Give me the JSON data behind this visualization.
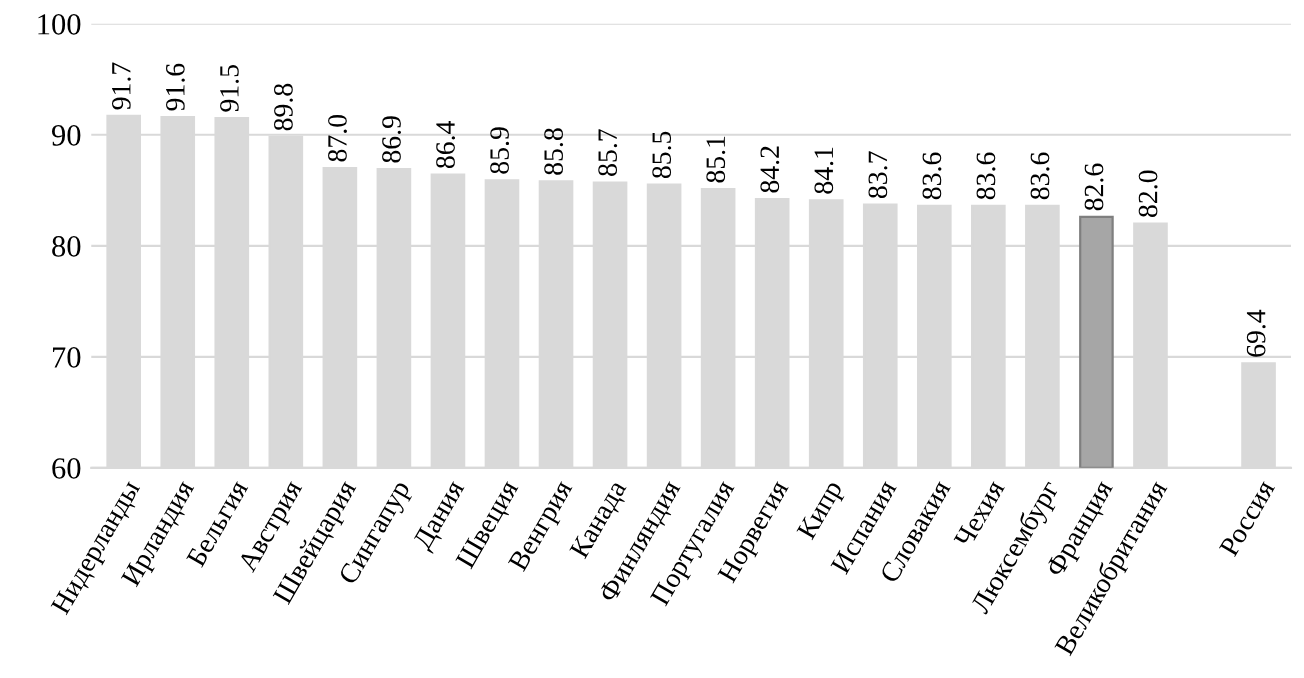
{
  "chart_data": {
    "type": "bar",
    "categories": [
      "Нидерланды",
      "Ирландия",
      "Бельгия",
      "Австрия",
      "Швейцария",
      "Сингапур",
      "Дания",
      "Швеция",
      "Венгрия",
      "Канада",
      "Финляндия",
      "Португалия",
      "Норвегия",
      "Кипр",
      "Испания",
      "Словакия",
      "Чехия",
      "Люксембург",
      "Франция",
      "Великобритания",
      null,
      "Россия"
    ],
    "values": [
      91.7,
      91.6,
      91.5,
      89.8,
      87.0,
      86.9,
      86.4,
      85.9,
      85.8,
      85.7,
      85.5,
      85.1,
      84.2,
      84.1,
      83.7,
      83.6,
      83.6,
      83.6,
      82.6,
      82.0,
      null,
      69.4
    ],
    "value_labels": [
      "91.7",
      "91.6",
      "91.5",
      "89.8",
      "87.0",
      "86.9",
      "86.4",
      "85.9",
      "85.8",
      "85.7",
      "85.5",
      "85.1",
      "84.2",
      "84.1",
      "83.7",
      "83.6",
      "83.6",
      "83.6",
      "82.6",
      "82.0",
      null,
      "69.4"
    ],
    "colors": [
      "#d9d9d9",
      "#d9d9d9",
      "#d9d9d9",
      "#d9d9d9",
      "#d9d9d9",
      "#d9d9d9",
      "#d9d9d9",
      "#d9d9d9",
      "#d9d9d9",
      "#d9d9d9",
      "#d9d9d9",
      "#d9d9d9",
      "#d9d9d9",
      "#d9d9d9",
      "#d9d9d9",
      "#d9d9d9",
      "#d9d9d9",
      "#d9d9d9",
      "#a6a6a6",
      "#d9d9d9",
      "#d9d9d9",
      "#d9d9d9"
    ],
    "ylim": [
      60,
      100
    ],
    "yticks": [
      60,
      70,
      80,
      90,
      100
    ],
    "grid": "y"
  }
}
